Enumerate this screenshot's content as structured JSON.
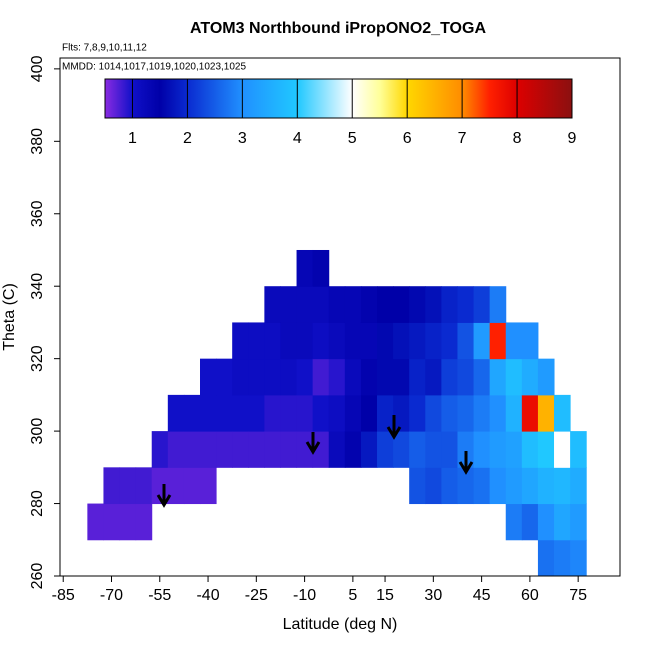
{
  "chart_data": {
    "type": "heatmap",
    "title": "ATOM3 Northbound iPropONO2_TOGA",
    "subtitle": "Flts: 7,8,9,10,11,12",
    "annotation": "MMDD: 1014,1017,1019,1020,1023,1025",
    "x_label": "Latitude (deg N)",
    "y_label": "Theta (C)",
    "xlim": [
      -86,
      88
    ],
    "xticks": [
      -85,
      -70,
      -55,
      -40,
      -25,
      -10,
      5,
      15,
      30,
      45,
      60,
      75
    ],
    "ylim": [
      260,
      403
    ],
    "yticks": [
      260,
      280,
      300,
      320,
      340,
      360,
      380,
      400
    ],
    "x": [
      -75,
      -70,
      -65,
      -60,
      -55,
      -50,
      -45,
      -40,
      -35,
      -30,
      -25,
      -20,
      -15,
      -10,
      -5,
      0,
      5,
      10,
      15,
      20,
      25,
      30,
      35,
      40,
      45,
      50,
      55,
      60,
      65,
      70,
      75
    ],
    "y_bins": [
      260,
      270,
      280,
      290,
      300,
      310,
      320,
      330,
      340,
      350
    ],
    "values": [
      [
        null,
        0.7,
        null,
        null,
        null,
        null,
        null,
        null,
        null
      ],
      [
        null,
        0.7,
        0.8,
        null,
        null,
        null,
        null,
        null,
        null
      ],
      [
        null,
        0.7,
        0.8,
        null,
        null,
        null,
        null,
        null,
        null
      ],
      [
        null,
        0.7,
        0.8,
        null,
        null,
        null,
        null,
        null,
        null
      ],
      [
        null,
        null,
        0.7,
        0.9,
        null,
        null,
        null,
        null,
        null
      ],
      [
        null,
        null,
        0.7,
        0.8,
        1.0,
        null,
        null,
        null,
        null
      ],
      [
        null,
        null,
        0.7,
        0.8,
        1.0,
        null,
        null,
        null,
        null
      ],
      [
        null,
        null,
        0.7,
        0.8,
        1.0,
        1.0,
        null,
        null,
        null
      ],
      [
        null,
        null,
        null,
        0.8,
        1.0,
        1.0,
        null,
        null,
        null
      ],
      [
        null,
        null,
        null,
        0.8,
        1.0,
        1.1,
        1.1,
        null,
        null
      ],
      [
        null,
        null,
        null,
        0.8,
        1.0,
        1.1,
        1.1,
        null,
        null
      ],
      [
        null,
        null,
        null,
        0.8,
        0.9,
        1.1,
        1.1,
        1.2,
        null
      ],
      [
        null,
        null,
        null,
        0.8,
        0.9,
        1.1,
        1.2,
        1.2,
        null
      ],
      [
        null,
        null,
        null,
        0.8,
        0.9,
        1.0,
        1.2,
        1.2,
        1.3
      ],
      [
        null,
        null,
        null,
        0.8,
        1.0,
        0.8,
        1.1,
        1.2,
        1.4
      ],
      [
        null,
        null,
        null,
        1.2,
        1.1,
        0.9,
        1.2,
        1.3,
        null
      ],
      [
        null,
        null,
        null,
        1.4,
        1.3,
        1.2,
        1.3,
        1.3,
        null
      ],
      [
        null,
        null,
        null,
        1.8,
        1.5,
        1.4,
        1.3,
        1.4,
        null
      ],
      [
        null,
        null,
        null,
        2.2,
        1.9,
        1.6,
        1.6,
        1.5,
        null
      ],
      [
        null,
        null,
        null,
        2.3,
        1.8,
        1.6,
        1.7,
        1.5,
        null
      ],
      [
        null,
        null,
        2.4,
        2.5,
        2.0,
        1.9,
        1.8,
        1.6,
        null
      ],
      [
        null,
        null,
        2.3,
        2.4,
        2.3,
        1.8,
        1.9,
        1.7,
        null
      ],
      [
        null,
        null,
        2.5,
        2.4,
        2.5,
        2.2,
        2.0,
        1.9,
        null
      ],
      [
        null,
        null,
        2.6,
        2.8,
        2.6,
        2.3,
        2.4,
        2.0,
        null
      ],
      [
        null,
        null,
        2.7,
        3.0,
        2.8,
        2.6,
        3.2,
        2.2,
        null
      ],
      [
        null,
        null,
        3.0,
        3.2,
        3.0,
        3.4,
        7.5,
        2.8,
        null
      ],
      [
        null,
        2.8,
        3.2,
        3.3,
        3.6,
        3.8,
        3.0,
        null,
        null
      ],
      [
        null,
        2.6,
        3.4,
        3.8,
        7.8,
        3.5,
        3.0,
        null,
        null
      ],
      [
        2.7,
        3.0,
        3.6,
        4.0,
        6.5,
        3.2,
        null,
        null,
        null
      ],
      [
        2.8,
        3.4,
        3.7,
        5.0,
        3.8,
        null,
        null,
        null,
        null
      ],
      [
        2.9,
        3.2,
        3.5,
        3.8,
        null,
        null,
        null,
        null,
        null
      ]
    ],
    "colorbar": {
      "range": [
        0.5,
        9
      ],
      "ticks": [
        1,
        2,
        3,
        4,
        5,
        6,
        7,
        8,
        9
      ],
      "stops": [
        [
          0.5,
          "#8a2be2"
        ],
        [
          1,
          "#1010c8"
        ],
        [
          1.5,
          "#0000a8"
        ],
        [
          2,
          "#0a2ad0"
        ],
        [
          3,
          "#2090ff"
        ],
        [
          4,
          "#20c8ff"
        ],
        [
          5,
          "#ffffff"
        ],
        [
          5.5,
          "#ffff99"
        ],
        [
          6,
          "#ffd700"
        ],
        [
          7,
          "#ff8c00"
        ],
        [
          7.5,
          "#ff2000"
        ],
        [
          8,
          "#dd0000"
        ],
        [
          9,
          "#8b1010"
        ]
      ]
    }
  }
}
